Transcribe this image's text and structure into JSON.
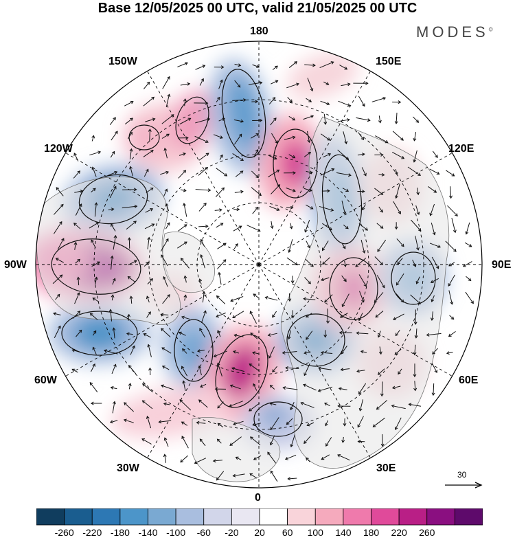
{
  "title": "Base 12/05/2025 00 UTC, valid 21/05/2025 00 UTC",
  "brand": "MODES",
  "brand_mark": "©",
  "longitude_labels": {
    "n180": "180",
    "w150": "150W",
    "e150": "150E",
    "w120": "120W",
    "e120": "120E",
    "w90": "90W",
    "e90": "90E",
    "w60": "60W",
    "e60": "60E",
    "w30": "30W",
    "e30": "30E",
    "s0": "0"
  },
  "vector_scale": {
    "value": "30"
  },
  "colorbar": {
    "ticks": [
      "-260",
      "-220",
      "-180",
      "-140",
      "-100",
      "-60",
      "-20",
      "20",
      "60",
      "100",
      "140",
      "180",
      "220",
      "260"
    ],
    "colors": [
      "#103d5e",
      "#1a5d8f",
      "#2d78b4",
      "#4c95c9",
      "#7aa9d2",
      "#a9bedf",
      "#d2d6ea",
      "#e9e7f2",
      "#ffffff",
      "#f9d4da",
      "#f5aabd",
      "#ef7aac",
      "#e04a9a",
      "#b91f86",
      "#8a0f80",
      "#5e0a6b"
    ]
  },
  "colors": {
    "land_outline": "#777777",
    "land_fill": "#e6e6e6",
    "arrow": "#111111"
  }
}
